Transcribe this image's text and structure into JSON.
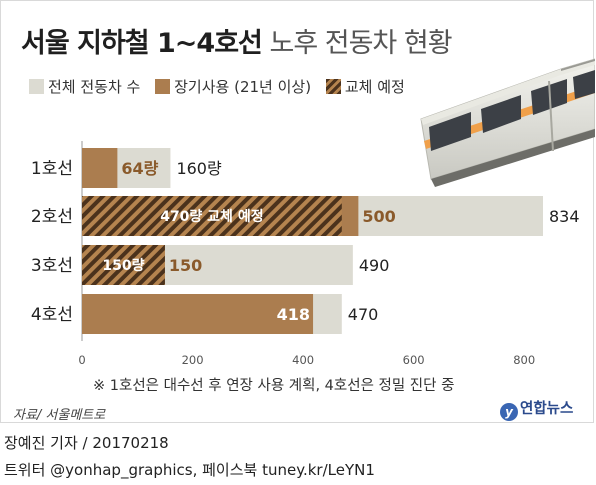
{
  "title": {
    "bold": "서울 지하철 1~4호선",
    "light": "노후 전동차 현황"
  },
  "legend": [
    {
      "key": "total",
      "label": "전체 전동차 수",
      "color": "#dcdbd2"
    },
    {
      "key": "long",
      "label": "장기사용 (21년 이상)",
      "color": "#ab7d4f"
    },
    {
      "key": "replace",
      "label": "교체 예정",
      "color": "#5a3a1f"
    }
  ],
  "chart_data": {
    "type": "bar",
    "orientation": "horizontal",
    "categories": [
      "1호선",
      "2호선",
      "3호선",
      "4호선"
    ],
    "series": [
      {
        "name": "전체 전동차 수",
        "values": [
          160,
          834,
          490,
          470
        ]
      },
      {
        "name": "장기사용 (21년 이상)",
        "values": [
          64,
          500,
          150,
          418
        ]
      },
      {
        "name": "교체 예정",
        "values": [
          null,
          470,
          150,
          null
        ]
      }
    ],
    "data_labels": {
      "total": [
        "160량",
        "834",
        "490",
        "470"
      ],
      "long": [
        "64량",
        "500",
        "150",
        "418"
      ],
      "replace": [
        "",
        "470량 교체 예정",
        "150량",
        ""
      ]
    },
    "x_ticks": [
      0,
      200,
      400,
      600,
      800
    ],
    "xlim": [
      0,
      860
    ],
    "stacking": "overlay",
    "grid": false
  },
  "note": "※ 1호선은 대수선 후 연장 사용 계획, 4호선은 정밀 진단 중",
  "source": "자료/ 서울메트로",
  "logo": {
    "mark": "y",
    "text": "연합뉴스"
  },
  "credits": {
    "line1": "장예진 기자 / 20170218",
    "line2": "트위터 @yonhap_graphics, 페이스북 tuney.kr/LeYN1"
  },
  "colors": {
    "total": "#dcdbd2",
    "long": "#ab7d4f",
    "replace_dark": "#4b321c",
    "replace_light": "#b5844f",
    "long_label": "#8a5a2b"
  }
}
